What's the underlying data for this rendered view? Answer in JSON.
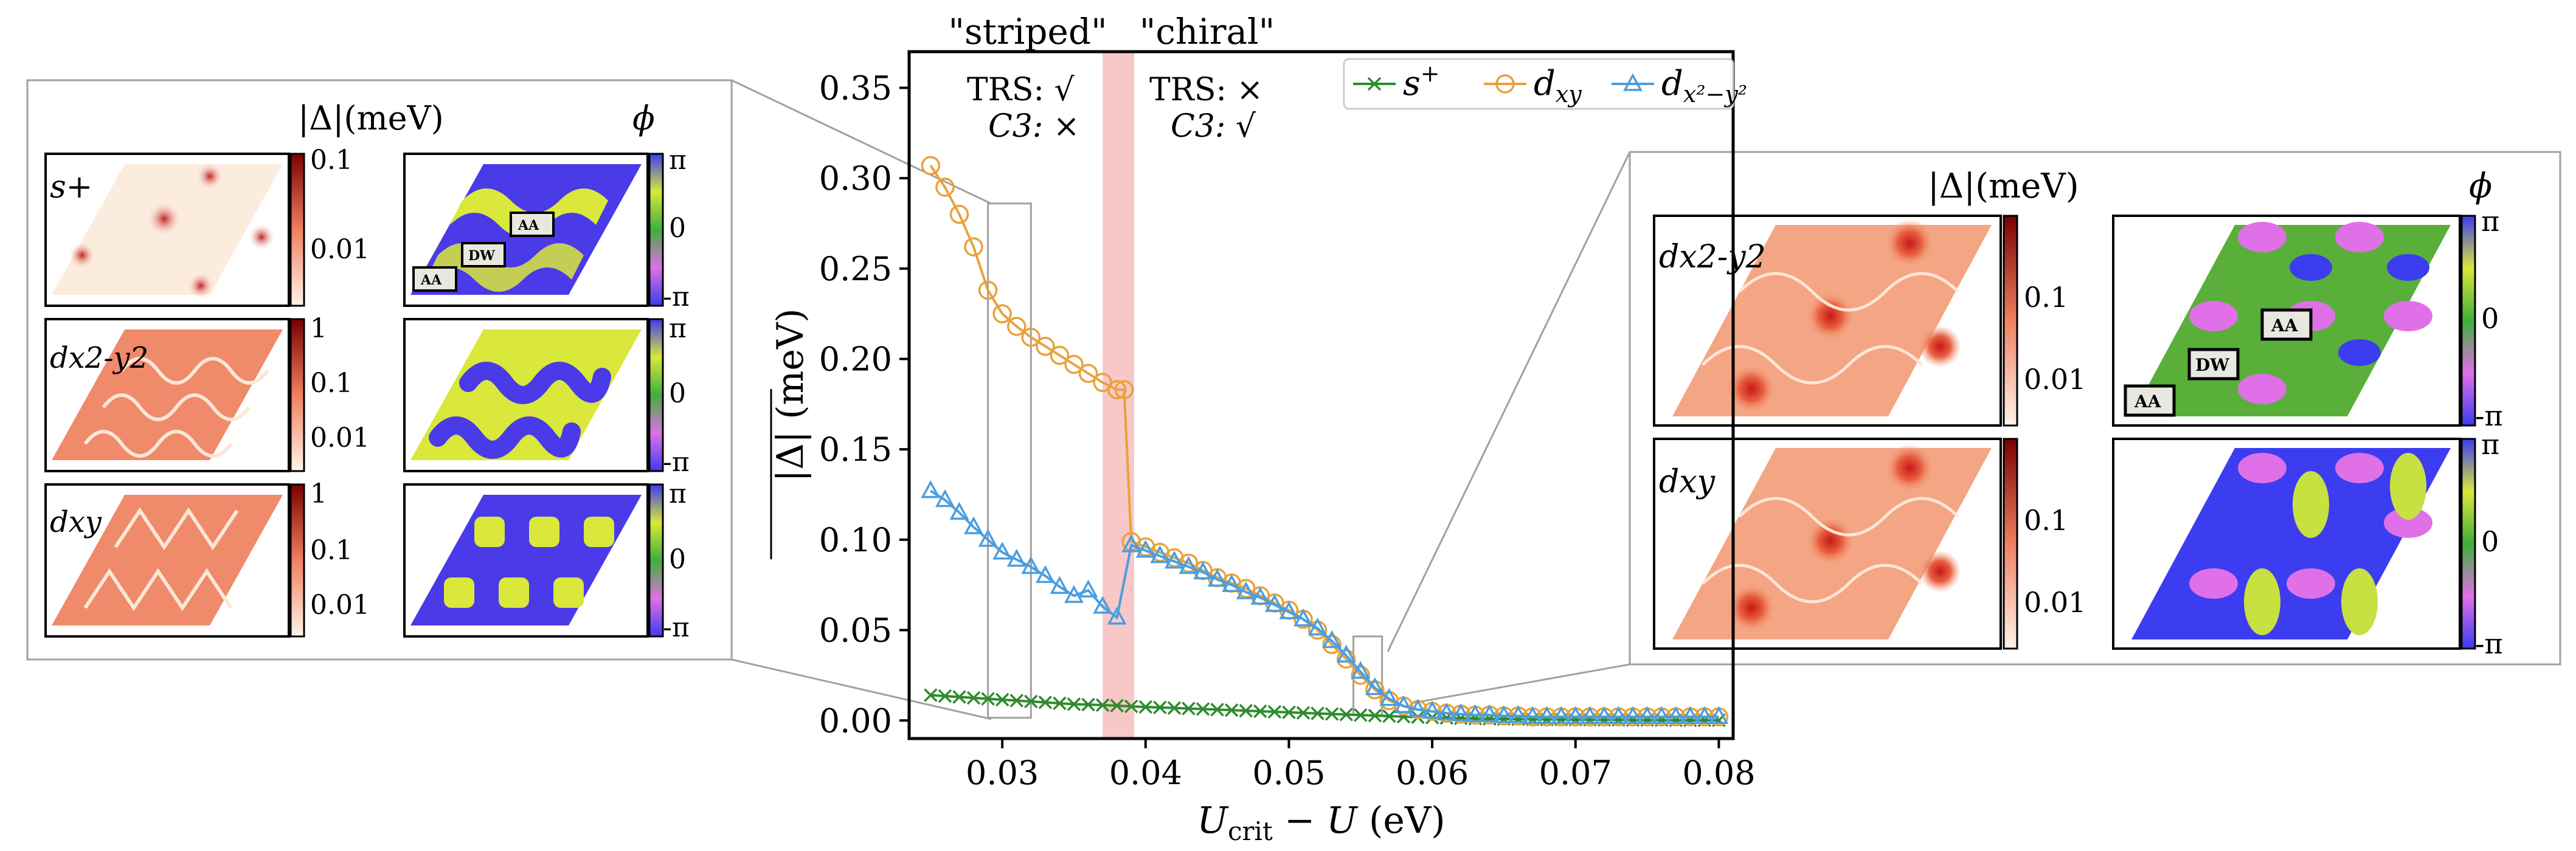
{
  "chart_data": {
    "type": "line",
    "xlabel": "U_crit − U (eV)",
    "ylabel": "|Δ| (meV)",
    "xlim": [
      0.0235,
      0.081
    ],
    "ylim": [
      -0.01,
      0.37
    ],
    "xticks": [
      0.03,
      0.04,
      0.05,
      0.06,
      0.07,
      0.08
    ],
    "yticks": [
      0.0,
      0.05,
      0.1,
      0.15,
      0.2,
      0.25,
      0.3,
      0.35
    ],
    "legend_position": "top-right",
    "highlight_band": {
      "x_from": 0.037,
      "x_to": 0.0392,
      "color": "#f8c8c8"
    },
    "series": [
      {
        "name": "s+",
        "color": "#2e8b2e",
        "marker": "x",
        "x": [
          0.025,
          0.026,
          0.027,
          0.028,
          0.029,
          0.03,
          0.031,
          0.032,
          0.033,
          0.034,
          0.035,
          0.036,
          0.037,
          0.038,
          0.039,
          0.04,
          0.041,
          0.042,
          0.043,
          0.044,
          0.045,
          0.046,
          0.047,
          0.048,
          0.049,
          0.05,
          0.051,
          0.052,
          0.053,
          0.054,
          0.055,
          0.056,
          0.057,
          0.058,
          0.059,
          0.06,
          0.061,
          0.062,
          0.063,
          0.064,
          0.065,
          0.066,
          0.067,
          0.068,
          0.069,
          0.07,
          0.071,
          0.072,
          0.073,
          0.074,
          0.075,
          0.076,
          0.077,
          0.078,
          0.079,
          0.08
        ],
        "y": [
          0.014,
          0.0135,
          0.013,
          0.0125,
          0.012,
          0.0115,
          0.011,
          0.0105,
          0.01,
          0.0095,
          0.009,
          0.0088,
          0.0085,
          0.0082,
          0.0078,
          0.0075,
          0.0072,
          0.0069,
          0.0066,
          0.0063,
          0.006,
          0.0057,
          0.0054,
          0.0051,
          0.0048,
          0.0045,
          0.0042,
          0.0039,
          0.0036,
          0.0033,
          0.003,
          0.0027,
          0.0024,
          0.0021,
          0.0018,
          0.0016,
          0.0014,
          0.0012,
          0.001,
          0.0009,
          0.0008,
          0.0007,
          0.0006,
          0.0005,
          0.0005,
          0.0004,
          0.0004,
          0.0003,
          0.0003,
          0.0002,
          0.0002,
          0.0002,
          0.0001,
          0.0001,
          0.0001,
          0.0001
        ]
      },
      {
        "name": "dxy",
        "color": "#e8a23c",
        "marker": "o",
        "x": [
          0.025,
          0.026,
          0.027,
          0.028,
          0.029,
          0.03,
          0.031,
          0.032,
          0.033,
          0.034,
          0.035,
          0.036,
          0.037,
          0.038,
          0.0385,
          0.039,
          0.04,
          0.041,
          0.042,
          0.043,
          0.044,
          0.045,
          0.046,
          0.047,
          0.048,
          0.049,
          0.05,
          0.051,
          0.052,
          0.053,
          0.054,
          0.055,
          0.056,
          0.057,
          0.058,
          0.059,
          0.06,
          0.061,
          0.062,
          0.063,
          0.064,
          0.065,
          0.066,
          0.067,
          0.068,
          0.069,
          0.07,
          0.071,
          0.072,
          0.073,
          0.074,
          0.075,
          0.076,
          0.077,
          0.078,
          0.079,
          0.08
        ],
        "y": [
          0.307,
          0.295,
          0.28,
          0.262,
          0.238,
          0.225,
          0.218,
          0.212,
          0.207,
          0.202,
          0.197,
          0.192,
          0.187,
          0.183,
          0.183,
          0.099,
          0.096,
          0.093,
          0.09,
          0.087,
          0.083,
          0.079,
          0.076,
          0.073,
          0.069,
          0.065,
          0.061,
          0.056,
          0.05,
          0.042,
          0.034,
          0.025,
          0.017,
          0.011,
          0.008,
          0.006,
          0.005,
          0.004,
          0.0035,
          0.003,
          0.003,
          0.0025,
          0.0025,
          0.002,
          0.002,
          0.002,
          0.002,
          0.002,
          0.002,
          0.002,
          0.002,
          0.002,
          0.002,
          0.002,
          0.002,
          0.002,
          0.002
        ]
      },
      {
        "name": "dx2−y2",
        "color": "#4a9ee0",
        "marker": "^",
        "x": [
          0.025,
          0.026,
          0.027,
          0.028,
          0.029,
          0.03,
          0.031,
          0.032,
          0.033,
          0.034,
          0.035,
          0.036,
          0.037,
          0.038,
          0.039,
          0.04,
          0.041,
          0.042,
          0.043,
          0.044,
          0.045,
          0.046,
          0.047,
          0.048,
          0.049,
          0.05,
          0.051,
          0.052,
          0.053,
          0.054,
          0.055,
          0.056,
          0.057,
          0.058,
          0.059,
          0.06,
          0.061,
          0.062,
          0.063,
          0.064,
          0.065,
          0.066,
          0.067,
          0.068,
          0.069,
          0.07,
          0.071,
          0.072,
          0.073,
          0.074,
          0.075,
          0.076,
          0.077,
          0.078,
          0.079,
          0.08
        ],
        "y": [
          0.127,
          0.122,
          0.115,
          0.107,
          0.1,
          0.093,
          0.089,
          0.085,
          0.08,
          0.074,
          0.069,
          0.072,
          0.063,
          0.057,
          0.097,
          0.094,
          0.091,
          0.088,
          0.085,
          0.082,
          0.078,
          0.075,
          0.071,
          0.068,
          0.064,
          0.06,
          0.056,
          0.051,
          0.044,
          0.036,
          0.027,
          0.018,
          0.012,
          0.008,
          0.006,
          0.005,
          0.004,
          0.0035,
          0.003,
          0.003,
          0.0025,
          0.0025,
          0.002,
          0.002,
          0.002,
          0.002,
          0.002,
          0.002,
          0.002,
          0.002,
          0.002,
          0.002,
          0.002,
          0.002,
          0.002,
          0.002
        ]
      }
    ],
    "annotations": {
      "striped_title": "\"striped\"",
      "chiral_title": "\"chiral\"",
      "striped_trs": "TRS: √",
      "striped_c3": "C3: ×",
      "chiral_trs": "TRS: ×",
      "chiral_c3": "C3: √"
    }
  },
  "insets": {
    "left_header_abs": "|Δ|(meV)",
    "left_header_phase": "ϕ",
    "right_header_abs": "|Δ|(meV)",
    "right_header_phase": "ϕ",
    "left_rows": [
      {
        "label": "s+",
        "ticks": [
          "0.1",
          "0.01"
        ]
      },
      {
        "label": "dx2-y2",
        "ticks": [
          "1",
          "0.1",
          "0.01"
        ]
      },
      {
        "label": "dxy",
        "ticks": [
          "1",
          "0.1",
          "0.01"
        ]
      }
    ],
    "right_rows": [
      {
        "label": "dx2-y2",
        "ticks": [
          "0.1",
          "0.01"
        ]
      },
      {
        "label": "dxy",
        "ticks": [
          "0.1",
          "0.01"
        ]
      }
    ],
    "phase_ticks": [
      "π",
      "0",
      "-π"
    ],
    "site_labels": [
      "AA",
      "DW",
      "AA"
    ]
  }
}
